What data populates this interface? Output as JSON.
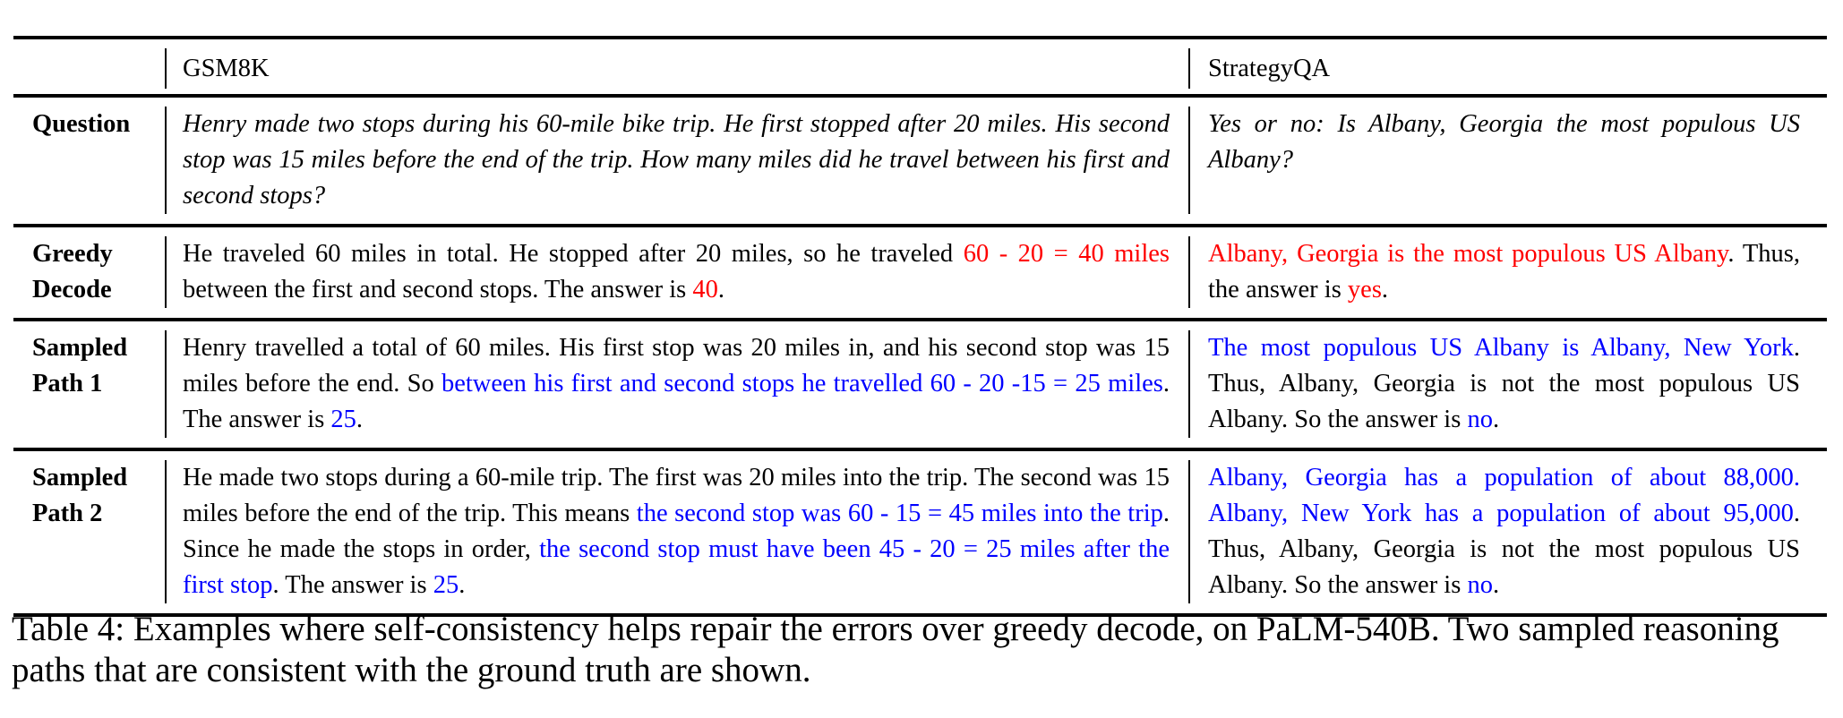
{
  "colors": {
    "wrong": "#ff0000",
    "correct": "#0000ff",
    "text": "#000000"
  },
  "header": {
    "label": "",
    "col1": "GSM8K",
    "col2": "StrategyQA"
  },
  "rows": [
    {
      "label": "Question",
      "italic": true,
      "col1": [
        {
          "t": "Henry made two stops during his 60-mile bike trip.  He first stopped after 20 miles. His second stop was 15 miles before the end of the trip. How many miles did he travel between his first and second stops?",
          "c": "text"
        }
      ],
      "col2": [
        {
          "t": "Yes or no: Is Albany, Georgia the most populous US Albany?",
          "c": "text"
        }
      ]
    },
    {
      "label": "Greedy Decode",
      "col1": [
        {
          "t": "He traveled 60 miles in total. He stopped after 20 miles, so he traveled ",
          "c": "text"
        },
        {
          "t": "60 - 20 = 40 miles",
          "c": "wrong"
        },
        {
          "t": " between the first and second stops. The answer is ",
          "c": "text"
        },
        {
          "t": "40",
          "c": "wrong"
        },
        {
          "t": ".",
          "c": "text"
        }
      ],
      "col2": [
        {
          "t": "Albany, Georgia is the most populous US Al­bany",
          "c": "wrong"
        },
        {
          "t": ". Thus, the answer is ",
          "c": "text"
        },
        {
          "t": "yes",
          "c": "wrong"
        },
        {
          "t": ".",
          "c": "text"
        }
      ]
    },
    {
      "label": "Sampled Path 1",
      "col1": [
        {
          "t": "Henry travelled a total of 60 miles.  His first stop was 20 miles in, and his second stop was 15 miles before the end. So ",
          "c": "text"
        },
        {
          "t": "between his first and second stops he travelled 60 - 20 -15 = 25 miles",
          "c": "correct"
        },
        {
          "t": ". The answer is ",
          "c": "text"
        },
        {
          "t": "25",
          "c": "correct"
        },
        {
          "t": ".",
          "c": "text"
        }
      ],
      "col2": [
        {
          "t": "The most populous US Albany is Albany, New York",
          "c": "correct"
        },
        {
          "t": ".  Thus, Albany, Georgia is not the most populous US Albany. So the answer is ",
          "c": "text"
        },
        {
          "t": "no",
          "c": "correct"
        },
        {
          "t": ".",
          "c": "text"
        }
      ]
    },
    {
      "label": "Sampled Path 2",
      "col1": [
        {
          "t": "He made two stops during a 60-mile trip. The first was 20 miles into the trip. The second was 15 miles before the end of the trip. This means ",
          "c": "text"
        },
        {
          "t": "the second stop was 60 - 15 = 45 miles into the trip",
          "c": "correct"
        },
        {
          "t": ". Since he made the stops in order, ",
          "c": "text"
        },
        {
          "t": "the second stop must have been 45 - 20 = 25 miles after the first stop",
          "c": "correct"
        },
        {
          "t": ". The answer is ",
          "c": "text"
        },
        {
          "t": "25",
          "c": "correct"
        },
        {
          "t": ".",
          "c": "text"
        }
      ],
      "col2": [
        {
          "t": "Albany, Georgia has a population of about 88,000. Albany, New York has a population of about 95,000",
          "c": "correct"
        },
        {
          "t": ". Thus, Albany, Georgia is not the most populous US Albany. So the answer is ",
          "c": "text"
        },
        {
          "t": "no",
          "c": "correct"
        },
        {
          "t": ".",
          "c": "text"
        }
      ]
    }
  ],
  "caption": "Table 4: Examples where self-consistency helps repair the errors over greedy decode, on PaLM-540B. Two sampled reasoning paths that are consistent with the ground truth are shown."
}
